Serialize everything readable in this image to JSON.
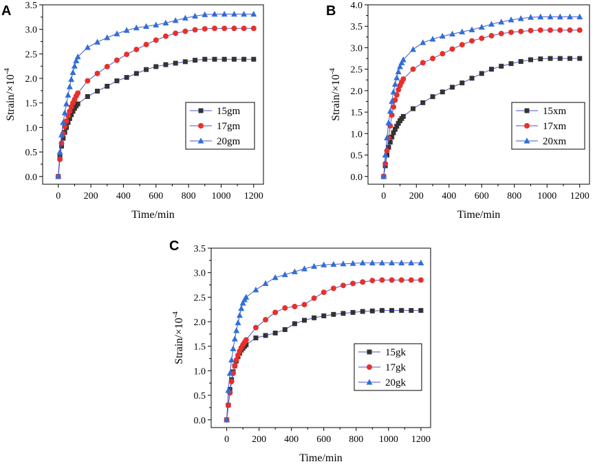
{
  "figure": {
    "panels": [
      {
        "letter": "A",
        "chart_data": {
          "type": "line",
          "title": "",
          "xlabel": "Time/min",
          "ylabel_base": "Strain/×10",
          "ylabel_exp": "-4",
          "xlim": [
            0,
            1200
          ],
          "ylim": [
            0,
            3.5
          ],
          "xticks": [
            "0",
            "200",
            "400",
            "600",
            "800",
            "1000",
            "1200"
          ],
          "yticks": [
            "0.0",
            "0.5",
            "1.0",
            "1.5",
            "2.0",
            "2.5",
            "3.0",
            "3.5"
          ],
          "legend_placement": "right-middle",
          "series": [
            {
              "name": "15gm",
              "color": "#333333",
              "marker": "square",
              "x": [
                0,
                10,
                20,
                30,
                40,
                50,
                60,
                70,
                80,
                90,
                100,
                110,
                120,
                180,
                240,
                300,
                360,
                420,
                480,
                540,
                600,
                660,
                720,
                780,
                840,
                900,
                960,
                1020,
                1080,
                1140,
                1200
              ],
              "values": [
                0.0,
                0.4,
                0.62,
                0.78,
                0.9,
                1.0,
                1.1,
                1.18,
                1.26,
                1.33,
                1.39,
                1.44,
                1.48,
                1.63,
                1.74,
                1.84,
                1.95,
                2.02,
                2.1,
                2.18,
                2.24,
                2.28,
                2.31,
                2.34,
                2.37,
                2.39,
                2.39,
                2.39,
                2.39,
                2.39,
                2.39
              ]
            },
            {
              "name": "17gm",
              "color": "#e8302a",
              "marker": "circle",
              "x": [
                0,
                10,
                20,
                30,
                40,
                50,
                60,
                70,
                80,
                90,
                100,
                110,
                120,
                180,
                240,
                300,
                360,
                420,
                480,
                540,
                600,
                660,
                720,
                780,
                840,
                900,
                960,
                1020,
                1080,
                1140,
                1200
              ],
              "values": [
                0.0,
                0.35,
                0.68,
                0.87,
                1.02,
                1.13,
                1.24,
                1.33,
                1.42,
                1.5,
                1.57,
                1.64,
                1.7,
                1.95,
                2.1,
                2.24,
                2.37,
                2.49,
                2.59,
                2.69,
                2.78,
                2.86,
                2.92,
                2.96,
                2.99,
                3.01,
                3.02,
                3.02,
                3.02,
                3.02,
                3.02
              ]
            },
            {
              "name": "20gm",
              "color": "#2f6fd8",
              "marker": "triangle",
              "x": [
                0,
                10,
                20,
                30,
                40,
                50,
                60,
                70,
                80,
                90,
                100,
                110,
                120,
                180,
                240,
                300,
                360,
                420,
                480,
                540,
                600,
                660,
                720,
                780,
                840,
                900,
                960,
                1020,
                1080,
                1140,
                1200
              ],
              "values": [
                0.0,
                0.5,
                0.85,
                1.1,
                1.3,
                1.48,
                1.66,
                1.83,
                1.98,
                2.12,
                2.25,
                2.36,
                2.44,
                2.63,
                2.74,
                2.83,
                2.91,
                2.98,
                3.03,
                3.06,
                3.09,
                3.13,
                3.18,
                3.23,
                3.27,
                3.3,
                3.31,
                3.31,
                3.31,
                3.31,
                3.31
              ]
            }
          ]
        }
      },
      {
        "letter": "B",
        "chart_data": {
          "type": "line",
          "title": "",
          "xlabel": "Time/min",
          "ylabel_base": "Strain/×10",
          "ylabel_exp": "-4",
          "xlim": [
            0,
            1200
          ],
          "ylim": [
            0,
            4.0
          ],
          "xticks": [
            "0",
            "200",
            "400",
            "600",
            "800",
            "1000",
            "1200"
          ],
          "yticks": [
            "0.0",
            "0.5",
            "1.0",
            "1.5",
            "2.0",
            "2.5",
            "3.0",
            "3.5",
            "4.0"
          ],
          "legend_placement": "right-middle",
          "series": [
            {
              "name": "15xm",
              "color": "#333333",
              "marker": "square",
              "x": [
                0,
                10,
                20,
                30,
                40,
                50,
                60,
                70,
                80,
                90,
                100,
                110,
                120,
                180,
                240,
                300,
                360,
                420,
                480,
                540,
                600,
                660,
                720,
                780,
                840,
                900,
                960,
                1020,
                1080,
                1140,
                1200
              ],
              "values": [
                0.0,
                0.25,
                0.5,
                0.68,
                0.8,
                0.92,
                1.02,
                1.1,
                1.17,
                1.24,
                1.3,
                1.35,
                1.4,
                1.58,
                1.72,
                1.86,
                1.97,
                2.08,
                2.18,
                2.29,
                2.4,
                2.5,
                2.57,
                2.63,
                2.68,
                2.72,
                2.74,
                2.75,
                2.75,
                2.75,
                2.75
              ]
            },
            {
              "name": "17xm",
              "color": "#e8302a",
              "marker": "circle",
              "x": [
                0,
                10,
                20,
                30,
                40,
                50,
                60,
                70,
                80,
                90,
                100,
                110,
                120,
                180,
                240,
                300,
                360,
                420,
                480,
                540,
                600,
                660,
                720,
                780,
                840,
                900,
                960,
                1020,
                1080,
                1140,
                1200
              ],
              "values": [
                0.0,
                0.3,
                0.6,
                0.9,
                1.18,
                1.43,
                1.62,
                1.78,
                1.9,
                2.02,
                2.12,
                2.2,
                2.27,
                2.5,
                2.65,
                2.75,
                2.86,
                2.97,
                3.07,
                3.16,
                3.22,
                3.28,
                3.33,
                3.36,
                3.38,
                3.4,
                3.41,
                3.41,
                3.41,
                3.41,
                3.41
              ]
            },
            {
              "name": "20xm",
              "color": "#2f6fd8",
              "marker": "triangle",
              "x": [
                0,
                10,
                20,
                30,
                40,
                50,
                60,
                70,
                80,
                90,
                100,
                110,
                120,
                180,
                240,
                300,
                360,
                420,
                480,
                540,
                600,
                660,
                720,
                780,
                840,
                900,
                960,
                1020,
                1080,
                1140,
                1200
              ],
              "values": [
                0.0,
                0.5,
                0.9,
                1.25,
                1.52,
                1.75,
                1.97,
                2.15,
                2.3,
                2.44,
                2.56,
                2.65,
                2.72,
                2.96,
                3.12,
                3.2,
                3.27,
                3.32,
                3.37,
                3.42,
                3.48,
                3.55,
                3.6,
                3.65,
                3.68,
                3.71,
                3.72,
                3.72,
                3.72,
                3.72,
                3.72
              ]
            }
          ]
        }
      },
      {
        "letter": "C",
        "chart_data": {
          "type": "line",
          "title": "",
          "xlabel": "Time/min",
          "ylabel_base": "Strain/×10",
          "ylabel_exp": "-4",
          "xlim": [
            0,
            1200
          ],
          "ylim": [
            0,
            3.5
          ],
          "xticks": [
            "0",
            "200",
            "400",
            "600",
            "800",
            "1000",
            "1200"
          ],
          "yticks": [
            "0.0",
            "0.5",
            "1.0",
            "1.5",
            "2.0",
            "2.5",
            "3.0",
            "3.5"
          ],
          "legend_placement": "right-middle",
          "series": [
            {
              "name": "15gk",
              "color": "#333333",
              "marker": "square",
              "x": [
                0,
                10,
                20,
                30,
                40,
                50,
                60,
                70,
                80,
                90,
                100,
                110,
                120,
                180,
                240,
                300,
                360,
                420,
                480,
                540,
                600,
                660,
                720,
                780,
                840,
                900,
                960,
                1020,
                1080,
                1140,
                1200
              ],
              "values": [
                0.0,
                0.3,
                0.62,
                0.82,
                0.98,
                1.1,
                1.2,
                1.29,
                1.36,
                1.42,
                1.46,
                1.5,
                1.53,
                1.67,
                1.72,
                1.77,
                1.84,
                1.96,
                2.03,
                2.08,
                2.12,
                2.15,
                2.17,
                2.19,
                2.21,
                2.22,
                2.23,
                2.23,
                2.23,
                2.23,
                2.23
              ]
            },
            {
              "name": "17gk",
              "color": "#e8302a",
              "marker": "circle",
              "x": [
                0,
                10,
                20,
                30,
                40,
                50,
                60,
                70,
                80,
                90,
                100,
                110,
                120,
                180,
                240,
                300,
                360,
                420,
                480,
                540,
                600,
                660,
                720,
                780,
                840,
                900,
                960,
                1020,
                1080,
                1140,
                1200
              ],
              "values": [
                0.0,
                0.3,
                0.55,
                0.78,
                0.95,
                1.1,
                1.22,
                1.32,
                1.4,
                1.47,
                1.53,
                1.58,
                1.63,
                1.88,
                2.04,
                2.19,
                2.28,
                2.31,
                2.35,
                2.48,
                2.6,
                2.68,
                2.74,
                2.78,
                2.81,
                2.84,
                2.85,
                2.85,
                2.85,
                2.85,
                2.85
              ]
            },
            {
              "name": "20gk",
              "color": "#2f6fd8",
              "marker": "triangle",
              "x": [
                0,
                10,
                20,
                30,
                40,
                50,
                60,
                70,
                80,
                90,
                100,
                110,
                120,
                180,
                240,
                300,
                360,
                420,
                480,
                540,
                600,
                660,
                720,
                780,
                840,
                900,
                960,
                1020,
                1080,
                1140,
                1200
              ],
              "values": [
                0.0,
                0.6,
                0.95,
                1.22,
                1.45,
                1.65,
                1.82,
                1.98,
                2.13,
                2.27,
                2.38,
                2.45,
                2.5,
                2.65,
                2.78,
                2.9,
                2.96,
                3.02,
                3.08,
                3.13,
                3.16,
                3.17,
                3.18,
                3.19,
                3.2,
                3.2,
                3.2,
                3.2,
                3.2,
                3.2,
                3.2
              ]
            }
          ]
        }
      }
    ]
  }
}
